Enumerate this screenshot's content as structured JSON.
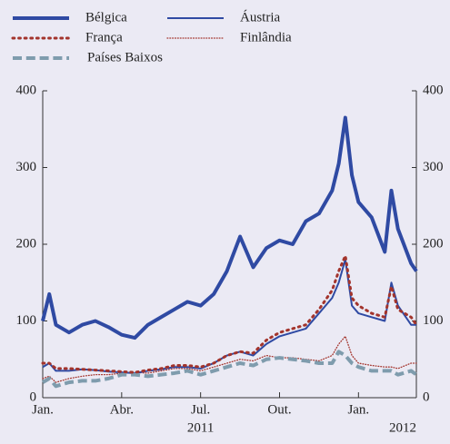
{
  "chart_data": {
    "type": "line",
    "x": [
      0,
      0.25,
      0.5,
      1,
      1.5,
      2,
      2.5,
      3,
      3.5,
      4,
      4.5,
      5,
      5.5,
      6,
      6.5,
      7,
      7.5,
      8,
      8.5,
      9,
      9.5,
      10,
      10.5,
      11,
      11.25,
      11.5,
      11.75,
      12,
      12.5,
      13,
      13.25,
      13.5,
      14,
      14.2
    ],
    "series": [
      {
        "name": "Bélgica",
        "color": "#2f4aa3",
        "width": 4,
        "dash": "solid",
        "values": [
          100,
          135,
          95,
          85,
          95,
          100,
          92,
          82,
          78,
          95,
          105,
          115,
          125,
          120,
          135,
          165,
          210,
          170,
          195,
          205,
          200,
          230,
          240,
          270,
          305,
          365,
          290,
          255,
          235,
          190,
          270,
          220,
          175,
          165
        ]
      },
      {
        "name": "França",
        "color": "#a3342c",
        "width": 3,
        "dash": "dot",
        "values": [
          45,
          45,
          38,
          38,
          37,
          36,
          35,
          34,
          33,
          36,
          38,
          42,
          42,
          40,
          45,
          55,
          60,
          58,
          75,
          85,
          90,
          95,
          115,
          140,
          165,
          185,
          130,
          120,
          110,
          105,
          145,
          115,
          105,
          95
        ]
      },
      {
        "name": "Países Baixos",
        "color": "#7f9cad",
        "width": 4,
        "dash": "dash",
        "values": [
          20,
          25,
          15,
          20,
          22,
          22,
          25,
          30,
          30,
          28,
          30,
          32,
          35,
          30,
          35,
          40,
          45,
          42,
          50,
          52,
          50,
          48,
          45,
          45,
          60,
          55,
          45,
          40,
          35,
          35,
          35,
          30,
          35,
          30
        ]
      },
      {
        "name": "Áustria",
        "color": "#2f4aa3",
        "width": 2,
        "dash": "solid",
        "values": [
          40,
          45,
          35,
          35,
          37,
          36,
          34,
          33,
          32,
          35,
          37,
          40,
          40,
          38,
          45,
          55,
          60,
          55,
          70,
          80,
          85,
          90,
          110,
          130,
          150,
          180,
          120,
          110,
          105,
          100,
          150,
          120,
          95,
          95
        ]
      },
      {
        "name": "Finlândia",
        "color": "#a3342c",
        "width": 1.3,
        "dash": "dot",
        "values": [
          25,
          28,
          20,
          25,
          28,
          30,
          30,
          32,
          33,
          32,
          35,
          38,
          38,
          35,
          40,
          45,
          50,
          48,
          55,
          52,
          52,
          50,
          48,
          55,
          70,
          80,
          55,
          45,
          42,
          40,
          40,
          38,
          45,
          45
        ]
      }
    ],
    "xlim": [
      0,
      14.2
    ],
    "xticks": [
      {
        "value": 0,
        "label": "Jan."
      },
      {
        "value": 3,
        "label": "Abr."
      },
      {
        "value": 6,
        "label": "Jul."
      },
      {
        "value": 9,
        "label": "Out."
      },
      {
        "value": 12,
        "label": "Jan."
      }
    ],
    "year_labels": [
      {
        "value": 6,
        "label": "2011"
      },
      {
        "value": 14.2,
        "label": "2012"
      }
    ],
    "ylim": [
      0,
      400
    ],
    "yticks": [
      0,
      100,
      200,
      300,
      400
    ],
    "y2lim": [
      0,
      400
    ],
    "y2ticks": [
      0,
      100,
      200,
      300,
      400
    ]
  }
}
